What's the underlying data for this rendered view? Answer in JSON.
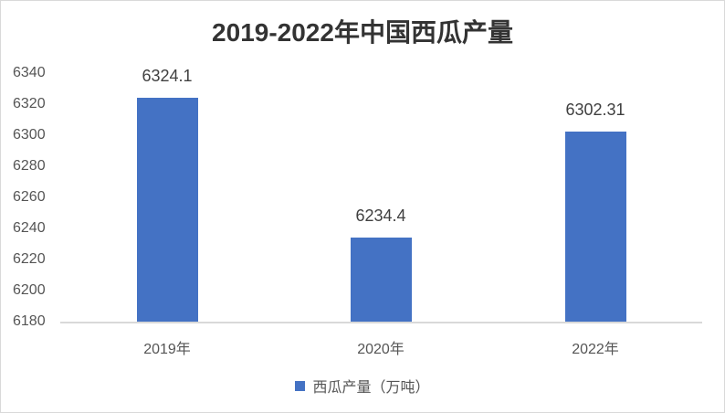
{
  "chart_data": {
    "type": "bar",
    "title": "2019-2022年中国西瓜产量",
    "categories": [
      "2019年",
      "2020年",
      "2022年"
    ],
    "series": [
      {
        "name": "西瓜产量（万吨）",
        "values": [
          6324.1,
          6234.4,
          6302.31
        ],
        "color": "#4472c4"
      }
    ],
    "data_labels": [
      "6324.1",
      "6234.4",
      "6302.31"
    ],
    "xlabel": "",
    "ylabel": "",
    "ylim": [
      6180,
      6340
    ],
    "yticks": [
      "6340",
      "6320",
      "6300",
      "6280",
      "6260",
      "6240",
      "6220",
      "6200",
      "6180"
    ],
    "grid": false,
    "legend_position": "bottom"
  }
}
